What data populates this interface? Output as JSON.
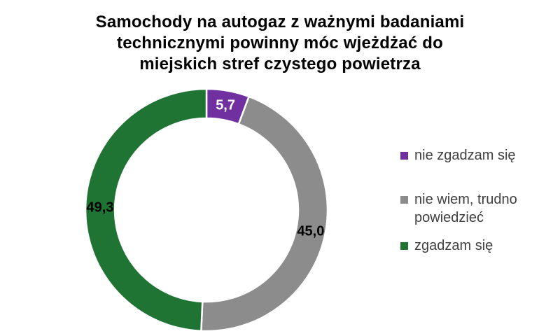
{
  "title": {
    "full": "Samochody na autogaz z ważnymi badaniami technicznymi powinny móc wjeżdżać do miejskich stref czystego powietrza",
    "lines": [
      "Samochody na autogaz z ważnymi badaniami",
      "technicznymi powinny móc wjeżdżać do",
      "miejskich stref czystego powietrza"
    ]
  },
  "chart_data": {
    "type": "pie",
    "subtype": "donut",
    "unit": "percent",
    "decimal_separator": ",",
    "start_angle_deg": 0,
    "direction": "clockwise",
    "legend_position": "right",
    "hole_color": "#ffffff",
    "slice_separator_color": "#ffffff",
    "series": [
      {
        "name": "nie zgadzam się",
        "value": 5.7,
        "label": "5,7",
        "color": "#7030a0",
        "label_color": "#ffffff"
      },
      {
        "name": "nie wiem, trudno powiedzieć",
        "value": 45.0,
        "label": "45,0",
        "color": "#8c8c8c",
        "label_color": "#000000"
      },
      {
        "name": "zgadzam się",
        "value": 49.3,
        "label": "49,3",
        "color": "#1f7433",
        "label_color": "#000000"
      }
    ]
  }
}
